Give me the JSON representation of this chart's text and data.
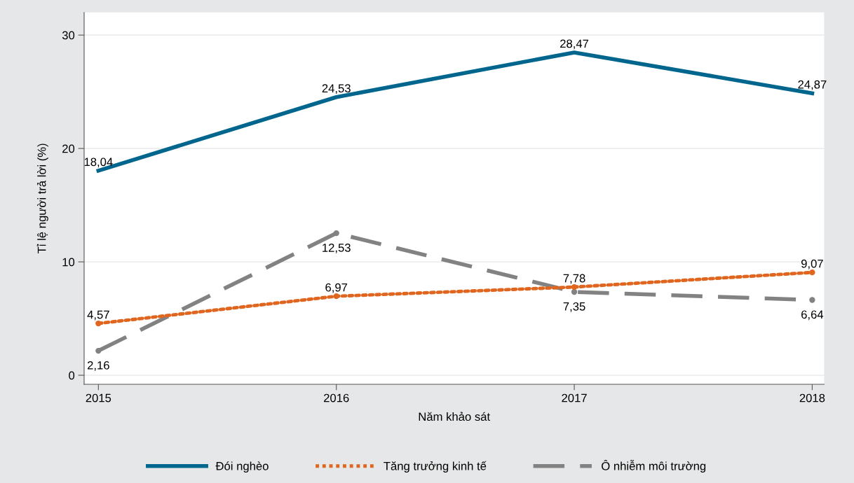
{
  "chart_data": {
    "type": "line",
    "xlabel": "Năm khảo sát",
    "ylabel": "Tỉ lệ người trả lời (%)",
    "x": [
      2015,
      2016,
      2017,
      2018
    ],
    "xlim": [
      2014.94,
      2018.05
    ],
    "xticks": [
      2015,
      2016,
      2017,
      2018
    ],
    "ylim": [
      -0.8,
      32
    ],
    "yticks": [
      0,
      10,
      20,
      30
    ],
    "grid": "y",
    "legend": "bottom",
    "series": [
      {
        "name": "Đói nghèo",
        "color": "#00668e",
        "line_style": "solid",
        "marker": "none",
        "values": [
          18.04,
          24.53,
          28.47,
          24.87
        ],
        "value_labels": [
          "18,04",
          "24,53",
          "28,47",
          "24,87"
        ]
      },
      {
        "name": "Tăng trưởng kinh tế",
        "color": "#e0661f",
        "line_style": "dotted",
        "marker": "circle",
        "values": [
          4.57,
          6.97,
          7.78,
          9.07
        ],
        "value_labels": [
          "4,57",
          "6,97",
          "7,78",
          "9,07"
        ]
      },
      {
        "name": "Ô nhiễm môi trường",
        "color": "#828282",
        "line_style": "dashed",
        "marker": "circle",
        "values": [
          2.16,
          12.53,
          7.35,
          6.64
        ],
        "value_labels": [
          "2,16",
          "12,53",
          "7,35",
          "6,64"
        ]
      }
    ]
  }
}
